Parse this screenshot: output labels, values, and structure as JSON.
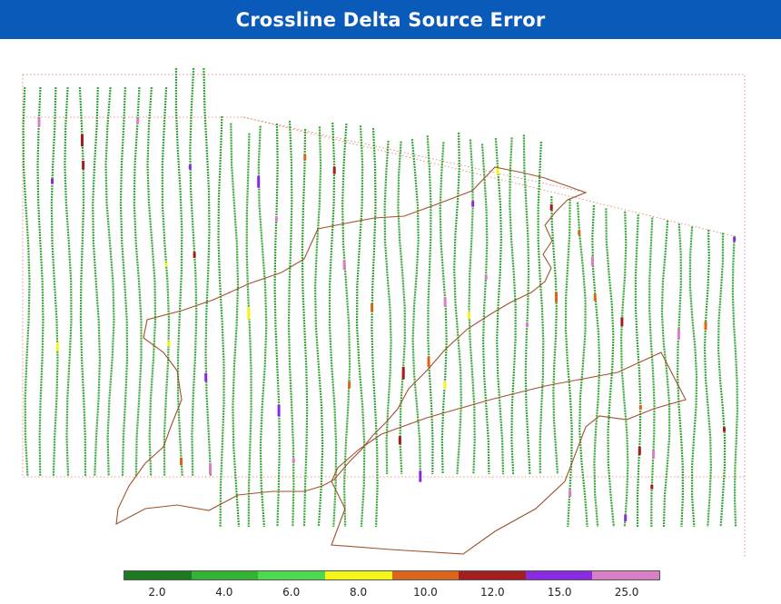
{
  "header": {
    "title": "Crossline Delta Source Error"
  },
  "map": {
    "line_color_default": "#3aa53a",
    "outline_color": "#a0522d",
    "frame_color": "#e07a5f"
  },
  "legend": {
    "entries": [
      {
        "label": "2.0",
        "color": "#1f7a1f"
      },
      {
        "label": "4.0",
        "color": "#33b233"
      },
      {
        "label": "6.0",
        "color": "#4cd94c"
      },
      {
        "label": "8.0",
        "color": "#f5f51a"
      },
      {
        "label": "10.0",
        "color": "#d9661a"
      },
      {
        "label": "12.0",
        "color": "#a31f1f"
      },
      {
        "label": "15.0",
        "color": "#8a2be2"
      },
      {
        "label": "25.0",
        "color": "#d87fc6"
      }
    ]
  }
}
